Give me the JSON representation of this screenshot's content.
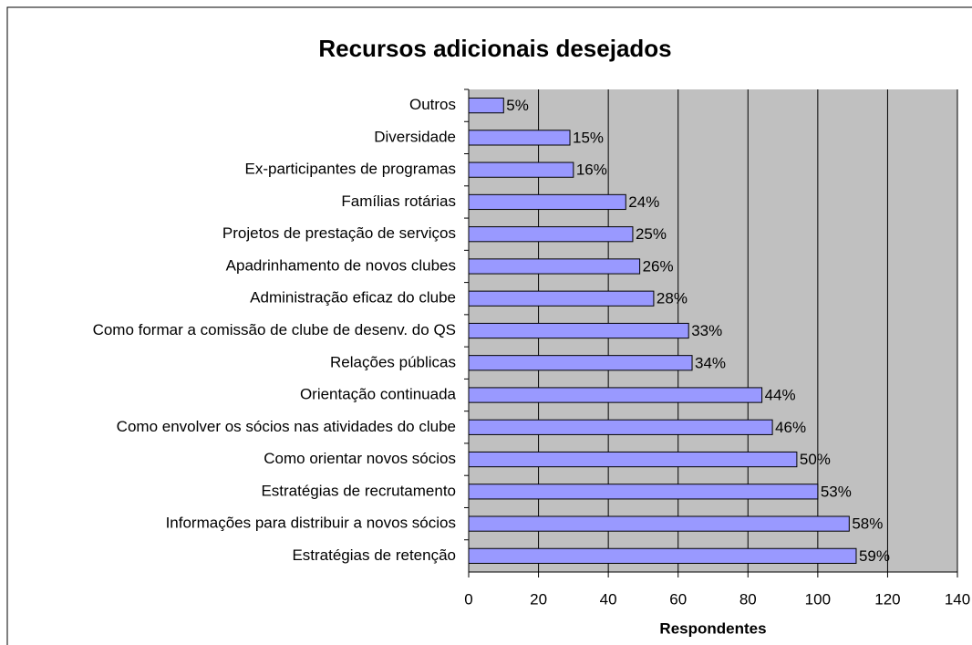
{
  "chart_data": {
    "type": "bar",
    "orientation": "horizontal",
    "title": "Recursos adicionais desejados",
    "xlabel": "Respondentes",
    "categories": [
      "Outros",
      "Diversidade",
      "Ex-participantes de programas",
      "Famílias rotárias",
      "Projetos de prestação de serviços",
      "Apadrinhamento de novos clubes",
      "Administração eficaz do clube",
      "Como formar a comissão de clube de desenv. do QS",
      "Relações públicas",
      "Orientação continuada",
      "Como envolver os sócios nas atividades do clube",
      "Como orientar novos sócios",
      "Estratégias de recrutamento",
      "Informações para distribuir a novos sócios",
      "Estratégias de retenção"
    ],
    "values": [
      10,
      29,
      30,
      45,
      47,
      49,
      53,
      63,
      64,
      84,
      87,
      94,
      100,
      109,
      111
    ],
    "data_labels": [
      "5%",
      "15%",
      "16%",
      "24%",
      "25%",
      "26%",
      "28%",
      "33%",
      "34%",
      "44%",
      "46%",
      "50%",
      "53%",
      "58%",
      "59%"
    ],
    "color": "#9999ff",
    "plot_background": "#c0c0c0",
    "xlim": [
      0,
      140
    ],
    "xticks": [
      0,
      20,
      40,
      60,
      80,
      100,
      120,
      140
    ],
    "grid": true
  }
}
